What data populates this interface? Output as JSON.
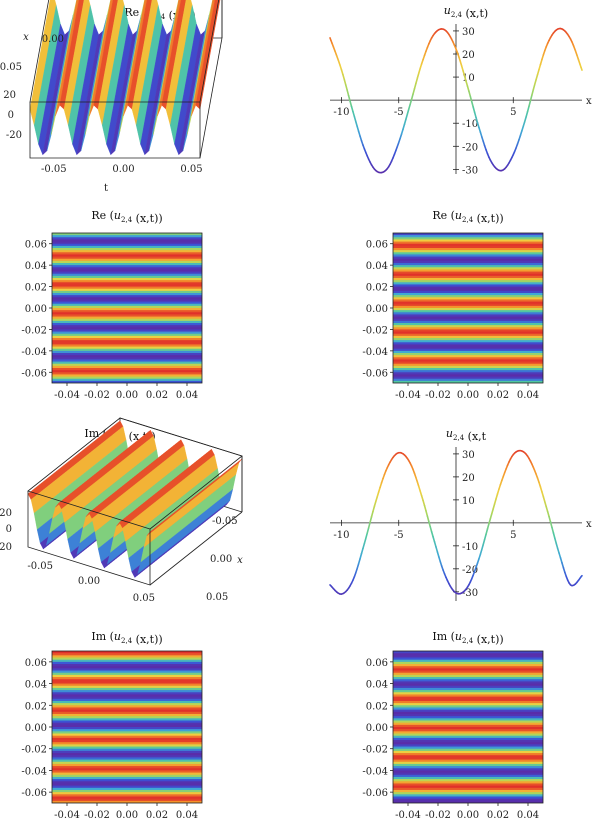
{
  "palette": [
    "#5a2ca8",
    "#3b52d6",
    "#3fa8d6",
    "#52c8a0",
    "#aed65a",
    "#f0d040",
    "#f5902a",
    "#e0302a"
  ],
  "chart_data": [
    {
      "id": "p1",
      "type": "surface3d",
      "title": {
        "pre": "Re (",
        "var": "u",
        "sub": "2,4",
        "post": " (x,t))"
      },
      "xlabel": "t",
      "ylabel": "x",
      "xticks": [
        "-0.05",
        "0.00",
        "0.05"
      ],
      "yticks": [
        "0.00",
        "0.05"
      ],
      "zticks": [
        "20",
        "0",
        "-20"
      ],
      "zrange": [
        -30,
        30
      ],
      "waves": 5
    },
    {
      "id": "p2",
      "type": "line",
      "title": {
        "pre": "",
        "var": "u",
        "sub": "2,4",
        "post": " (x,t)"
      },
      "xlabel": "x",
      "xlim": [
        -11,
        11
      ],
      "ylim": [
        -32,
        33
      ],
      "xticks": [
        {
          "v": -10,
          "l": "-10"
        },
        {
          "v": -5,
          "l": "-5"
        },
        {
          "v": 5,
          "l": "5"
        }
      ],
      "yticks": [
        {
          "v": 30,
          "l": "30"
        },
        {
          "v": 20,
          "l": "20"
        },
        {
          "v": 10,
          "l": "10"
        },
        {
          "v": -10,
          "l": "-10"
        },
        {
          "v": -20,
          "l": "-20"
        },
        {
          "v": -30,
          "l": "-30"
        }
      ],
      "x": [
        -11,
        -10,
        -9,
        -8,
        -7,
        -6,
        -5,
        -4,
        -3,
        -2,
        -1,
        0,
        1,
        2,
        3,
        4,
        5,
        6,
        7,
        8,
        9,
        10,
        11
      ],
      "y": [
        27.0,
        13.2,
        -4.9,
        -21.1,
        -30.5,
        -29.7,
        -18.4,
        -1.8,
        15.7,
        28.0,
        30.5,
        22.2,
        6.1,
        -11.8,
        -26.0,
        -30.5,
        -23.6,
        -9.3,
        9.0,
        24.6,
        31.0,
        26.5,
        13.0
      ]
    },
    {
      "id": "p3",
      "type": "heatmap",
      "title": {
        "pre": "Re (",
        "var": "u",
        "sub": "2,4",
        "post": " (x,t))"
      },
      "xticks": [
        "-0.04",
        "-0.02",
        "0.00",
        "0.02",
        "0.04"
      ],
      "yticks": [
        "0.06",
        "0.04",
        "0.02",
        "0.00",
        "-0.02",
        "-0.04",
        "-0.06"
      ],
      "xlim": [
        -0.05,
        0.05
      ],
      "ylim": [
        -0.07,
        0.07
      ],
      "bands": 5.2,
      "phase": 0.25
    },
    {
      "id": "p4",
      "type": "heatmap",
      "title": {
        "pre": "Re (",
        "var": "u",
        "sub": "2,4",
        "post": " (x,t))"
      },
      "xticks": [
        "-0.04",
        "-0.02",
        "0.00",
        "0.02",
        "0.04"
      ],
      "yticks": [
        "0.06",
        "0.04",
        "0.02",
        "0.00",
        "-0.02",
        "-0.04",
        "-0.06"
      ],
      "xlim": [
        -0.05,
        0.05
      ],
      "ylim": [
        -0.07,
        0.07
      ],
      "bands": 5.2,
      "phase": 0.6
    },
    {
      "id": "p5",
      "type": "surface3d",
      "title": {
        "pre": "Im (",
        "var": "u",
        "sub": "2,4",
        "post": " (x,t))"
      },
      "xlabel": "",
      "ylabel": "x",
      "xticks": [
        "-0.05",
        "0.00",
        "0.05"
      ],
      "yticks": [
        "-0.05",
        "0.00",
        "0.05"
      ],
      "zticks": [
        "20",
        "0",
        "-20"
      ],
      "zrange": [
        -30,
        30
      ],
      "waves": 4
    },
    {
      "id": "p6",
      "type": "line",
      "title": {
        "pre": "",
        "var": "u",
        "sub": "2,4",
        "post": " (x,t"
      },
      "xlabel": "x",
      "xlim": [
        -11,
        11
      ],
      "ylim": [
        -34,
        33
      ],
      "xticks": [
        {
          "v": -10,
          "l": "-10"
        },
        {
          "v": -5,
          "l": "-5"
        },
        {
          "v": 5,
          "l": "5"
        }
      ],
      "yticks": [
        {
          "v": 30,
          "l": "30"
        },
        {
          "v": 20,
          "l": "20"
        },
        {
          "v": 10,
          "l": "10"
        },
        {
          "v": -10,
          "l": "-10"
        },
        {
          "v": -20,
          "l": "-20"
        },
        {
          "v": -30,
          "l": "-30"
        }
      ],
      "x": [
        -11,
        -10,
        -9,
        -8,
        -7,
        -6,
        -5,
        -4,
        -3,
        -2,
        -1,
        0,
        1,
        2,
        3,
        4,
        5,
        6,
        7,
        8,
        9,
        10,
        11
      ],
      "y": [
        -27.0,
        -31.0,
        -25.0,
        -9.0,
        9.3,
        24.0,
        30.5,
        26.0,
        11.8,
        -6.1,
        -22.2,
        -30.5,
        -28.0,
        -15.7,
        1.8,
        18.4,
        29.7,
        30.5,
        21.1,
        4.9,
        -13.2,
        -27.0,
        -23.0
      ]
    },
    {
      "id": "p7",
      "type": "heatmap",
      "title": {
        "pre": "Im (",
        "var": "u",
        "sub": "2,4",
        "post": " (x,t))"
      },
      "xticks": [
        "-0.04",
        "-0.02",
        "0.00",
        "0.02",
        "0.04"
      ],
      "yticks": [
        "0.06",
        "0.04",
        "0.02",
        "0.00",
        "-0.02",
        "-0.04",
        "-0.06"
      ],
      "xlim": [
        -0.05,
        0.05
      ],
      "ylim": [
        -0.07,
        0.07
      ],
      "bands": 5.2,
      "phase": 0.0
    },
    {
      "id": "p8",
      "type": "heatmap",
      "title": {
        "pre": "Im (",
        "var": "u",
        "sub": "2,4",
        "post": " (x,t))"
      },
      "xticks": [
        "-0.04",
        "-0.02",
        "0.00",
        "0.02",
        "0.04"
      ],
      "yticks": [
        "0.06",
        "0.04",
        "0.02",
        "0.00",
        "-0.02",
        "-0.04",
        "-0.06"
      ],
      "xlim": [
        -0.05,
        0.05
      ],
      "ylim": [
        -0.07,
        0.07
      ],
      "bands": 5.2,
      "phase": 0.4
    }
  ]
}
